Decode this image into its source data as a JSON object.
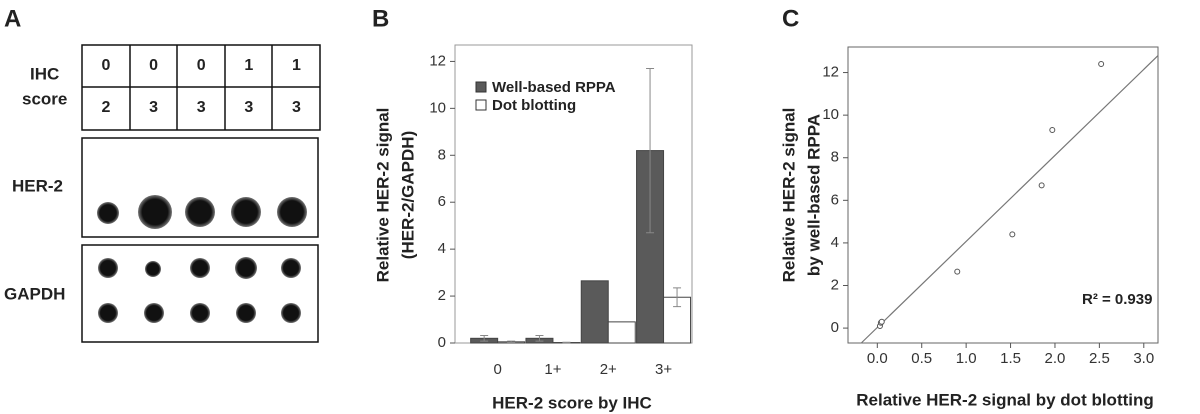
{
  "panel_a": {
    "label": "A",
    "row_label": [
      "IHC",
      "score"
    ],
    "table": {
      "rows": [
        [
          "0",
          "0",
          "0",
          "1",
          "1"
        ],
        [
          "2",
          "3",
          "3",
          "3",
          "3"
        ]
      ]
    },
    "blots": [
      "HER-2",
      "GAPDH"
    ]
  },
  "chart_data": [
    {
      "type": "bar",
      "label": "B",
      "xlabel": "HER-2 score by IHC",
      "ylabel": [
        "Relative HER-2 signal",
        "(HER-2/GAPDH)"
      ],
      "categories": [
        "0",
        "1+",
        "2+",
        "3+"
      ],
      "series": [
        {
          "name": "Well-based RPPA",
          "color": "#5a5a5a",
          "values": [
            0.2,
            0.2,
            2.65,
            8.2
          ],
          "errors": [
            0.12,
            0.12,
            null,
            3.5
          ]
        },
        {
          "name": "Dot blotting",
          "color": "#ffffff",
          "values": [
            0.05,
            0.02,
            0.9,
            1.95
          ],
          "errors": [
            0.03,
            0.01,
            null,
            0.4
          ]
        }
      ],
      "ylim": [
        0,
        12.7
      ],
      "yticks": [
        0,
        2,
        4,
        6,
        8,
        10,
        12
      ]
    },
    {
      "type": "scatter",
      "label": "C",
      "xlabel": "Relative HER-2 signal by dot blotting",
      "ylabel": [
        "Relative HER-2 signal",
        "by well-based RPPA"
      ],
      "x": [
        0.03,
        0.04,
        0.05,
        0.9,
        1.52,
        1.85,
        1.97,
        2.52
      ],
      "y": [
        0.1,
        0.25,
        0.3,
        2.65,
        4.4,
        6.7,
        9.3,
        12.4
      ],
      "fit": {
        "slope": 4.04,
        "intercept": 0.03
      },
      "annotation": "R² = 0.939",
      "xlim": [
        -0.33,
        3.16
      ],
      "ylim": [
        -0.7,
        13.2
      ],
      "xticks": [
        {
          "value": 0,
          "label": "0.0"
        },
        0.5,
        {
          "value": 1,
          "label": "1.0"
        },
        1.5,
        {
          "value": 2,
          "label": "2.0"
        },
        2.5,
        {
          "value": 3,
          "label": "3.0"
        }
      ],
      "yticks": [
        0,
        2,
        4,
        6,
        8,
        10,
        12
      ]
    }
  ]
}
